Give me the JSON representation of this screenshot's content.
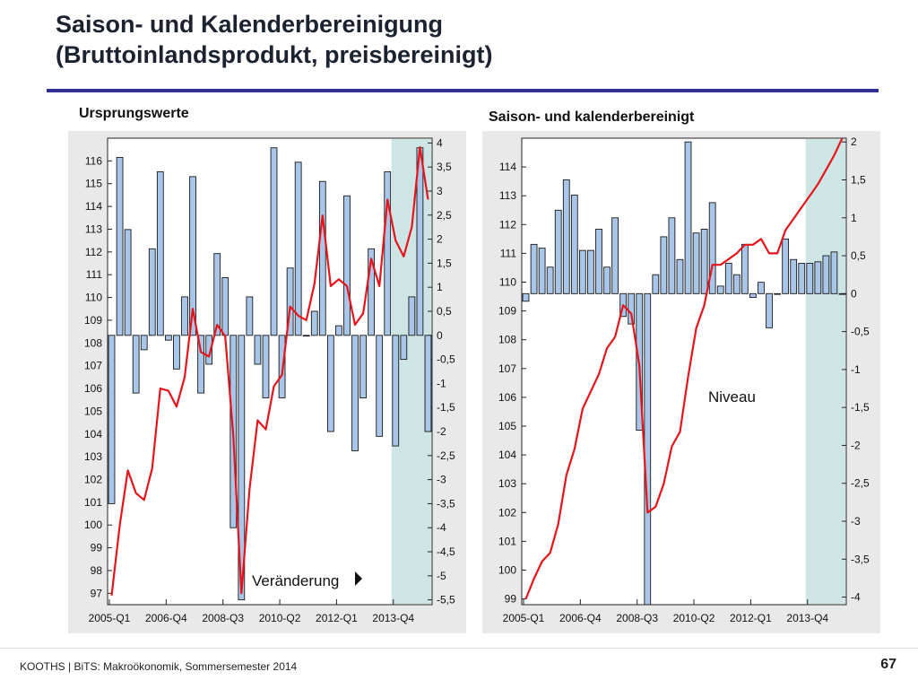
{
  "slide": {
    "title_line1": "Saison- und Kalenderbereinigung",
    "title_line2": "(Bruttoinlandsprodukt, preisbereinigt)",
    "footer": "KOOTHS | BiTS: Makroökonomik, Sommersemester 2014",
    "page_number": "67"
  },
  "colors": {
    "bar_fill": "#a9c6e8",
    "bar_stroke": "#1a1a1a",
    "line": "#e8141b",
    "forecast_shade": "#cde6e5",
    "panel_bg": "#e9e9e9"
  },
  "chart_data": [
    {
      "type": "bar+line",
      "title": "Ursprungswerte",
      "categories_shown": [
        "2005-Q1",
        "2006-Q4",
        "2008-Q3",
        "2010-Q2",
        "2012-Q1",
        "2013-Q4"
      ],
      "left_axis": {
        "ylim": [
          96.5,
          117
        ],
        "ticks": [
          "97",
          "98",
          "99",
          "100",
          "101",
          "102",
          "103",
          "104",
          "105",
          "106",
          "107",
          "108",
          "109",
          "110",
          "111",
          "112",
          "113",
          "114",
          "115",
          "116"
        ]
      },
      "right_axis": {
        "ylim": [
          -5.6,
          4.1
        ],
        "ticks": [
          "4",
          "3,5",
          "3",
          "2,5",
          "2",
          "1,5",
          "1",
          "0,5",
          "0",
          "-0,5",
          "-1",
          "-1,5",
          "-2",
          "-2,5",
          "-3",
          "-3,5",
          "-4",
          "-4,5",
          "-5",
          "-5,5"
        ]
      },
      "forecast_start_index": 35,
      "annotation": "Veränderung",
      "series": [
        {
          "name": "Veränderung",
          "axis": "right",
          "kind": "bar",
          "values": [
            -3.5,
            3.7,
            2.2,
            -1.2,
            -0.3,
            1.8,
            3.4,
            -0.1,
            -0.7,
            0.8,
            3.3,
            -1.2,
            -0.6,
            1.7,
            1.2,
            -4.0,
            -5.5,
            0.8,
            -0.6,
            -1.3,
            3.9,
            -1.3,
            1.4,
            3.6,
            0.0,
            0.5,
            3.2,
            -2.0,
            0.2,
            2.9,
            -2.4,
            -1.3,
            1.8,
            -2.1,
            3.4,
            -2.3,
            -0.5,
            0.8,
            3.9,
            -2.0
          ]
        },
        {
          "name": "Niveau",
          "axis": "left",
          "kind": "line",
          "values": [
            96.9,
            100.0,
            102.4,
            101.4,
            101.1,
            102.5,
            106.0,
            105.9,
            105.2,
            106.5,
            109.5,
            107.6,
            107.4,
            108.8,
            108.3,
            103.9,
            97.0,
            101.6,
            104.6,
            104.2,
            106.1,
            106.6,
            109.6,
            109.2,
            109.0,
            110.6,
            113.6,
            110.5,
            110.8,
            110.5,
            108.8,
            109.3,
            111.7,
            110.5,
            114.3,
            112.5,
            111.8,
            113.1,
            116.6,
            114.3
          ]
        }
      ]
    },
    {
      "type": "bar+line",
      "title": "Saison- und kalenderbereinigt",
      "categories_shown": [
        "2005-Q1",
        "2006-Q4",
        "2008-Q3",
        "2010-Q2",
        "2012-Q1",
        "2013-Q4"
      ],
      "left_axis": {
        "ylim": [
          98.8,
          115
        ],
        "ticks": [
          "99",
          "100",
          "101",
          "102",
          "103",
          "104",
          "105",
          "106",
          "107",
          "108",
          "109",
          "110",
          "111",
          "112",
          "113",
          "114"
        ]
      },
      "right_axis": {
        "ylim": [
          -4.1,
          2.05
        ],
        "ticks": [
          "2",
          "1,5",
          "1",
          "0,5",
          "0",
          "-0,5",
          "-1",
          "-1,5",
          "-2",
          "-2,5",
          "-3",
          "-3,5",
          "-4"
        ]
      },
      "forecast_start_index": 35,
      "annotation": "Niveau",
      "series": [
        {
          "name": "Veränderung",
          "axis": "right",
          "kind": "bar",
          "values": [
            -0.1,
            0.65,
            0.6,
            0.35,
            1.1,
            1.5,
            1.3,
            0.57,
            0.57,
            0.85,
            0.35,
            1.0,
            -0.3,
            -0.4,
            -1.8,
            -4.1,
            0.25,
            0.75,
            1.0,
            0.45,
            2.0,
            0.8,
            0.85,
            1.2,
            0.1,
            0.4,
            0.25,
            0.65,
            -0.05,
            0.15,
            -0.45,
            0.0,
            0.72,
            0.45,
            0.4,
            0.4,
            0.42,
            0.5,
            0.55,
            0.0
          ]
        },
        {
          "name": "Niveau",
          "axis": "left",
          "kind": "line",
          "values": [
            99.0,
            99.7,
            100.3,
            100.6,
            101.6,
            103.3,
            104.2,
            105.6,
            106.2,
            106.8,
            107.7,
            108.1,
            109.2,
            108.9,
            107.1,
            102.0,
            102.2,
            103.0,
            104.3,
            104.8,
            106.7,
            108.4,
            109.2,
            110.6,
            110.6,
            110.8,
            111.0,
            111.3,
            111.3,
            111.5,
            111.0,
            111.0,
            111.8,
            112.2,
            112.6,
            113.0,
            113.4,
            113.9,
            114.4,
            115.0
          ]
        }
      ]
    }
  ]
}
